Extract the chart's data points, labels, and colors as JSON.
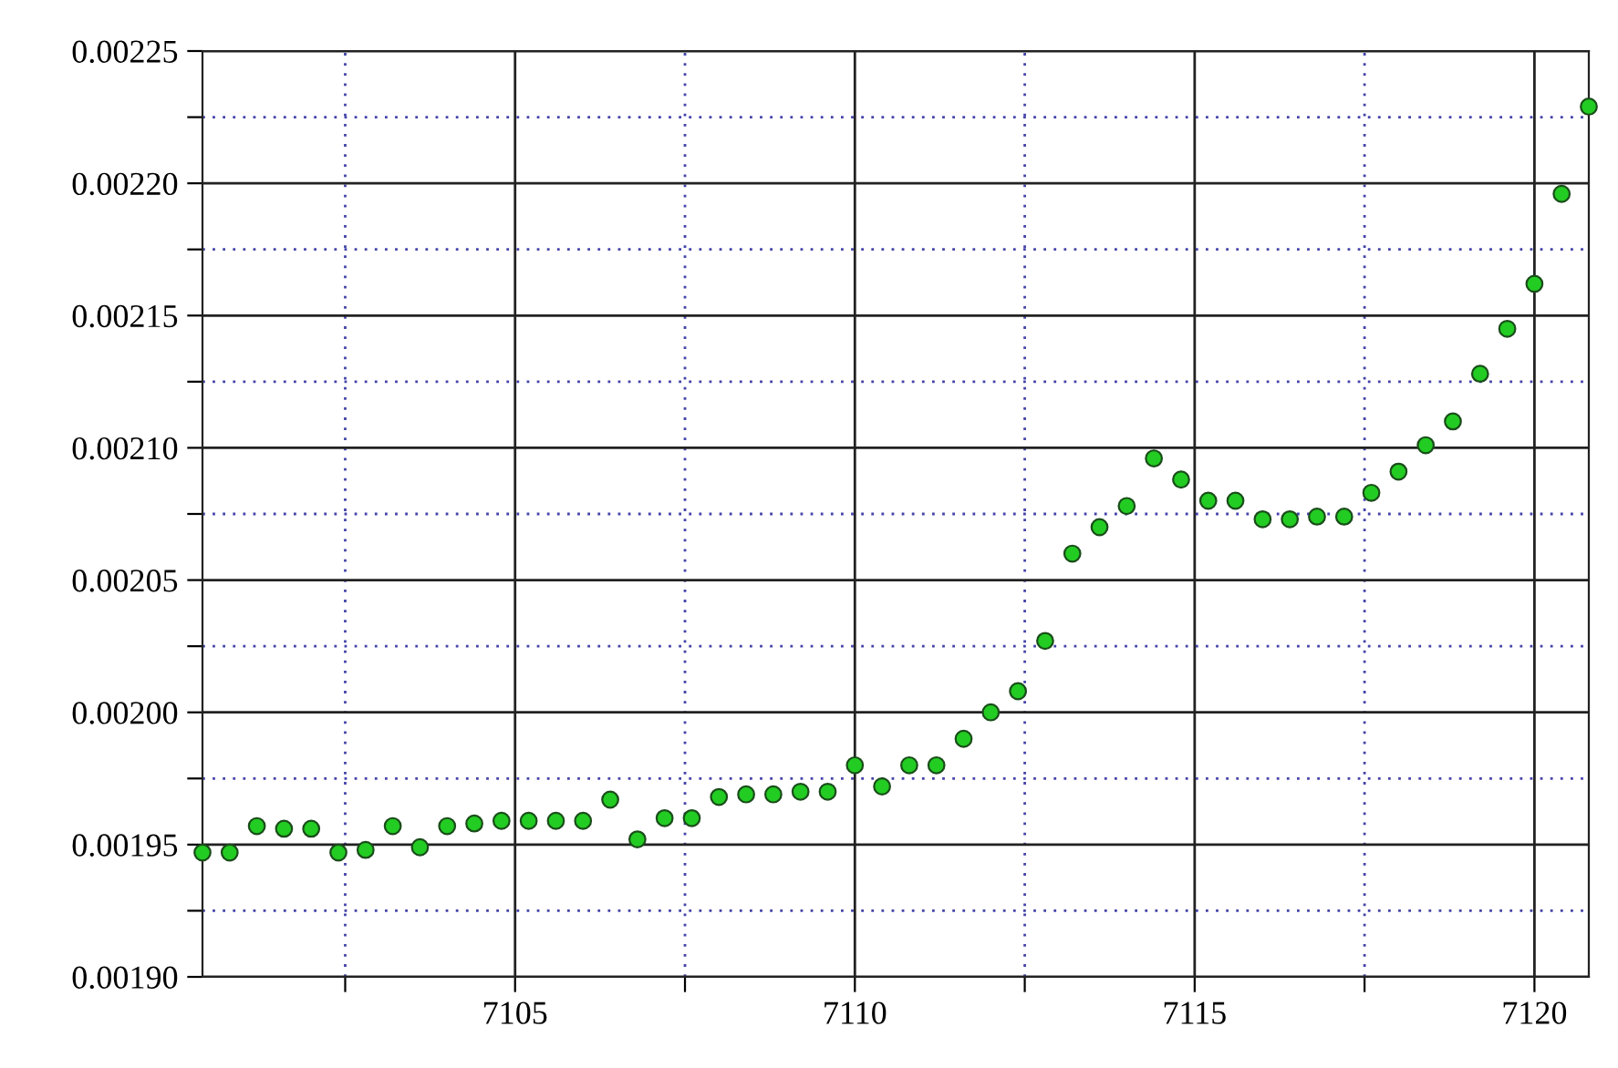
{
  "chart_data": {
    "type": "scatter",
    "marker": "circle",
    "grid": true,
    "x": [
      7100.4,
      7100.8,
      7101.2,
      7101.6,
      7102.0,
      7102.4,
      7102.8,
      7103.2,
      7103.6,
      7104.0,
      7104.4,
      7104.8,
      7105.2,
      7105.6,
      7106.0,
      7106.4,
      7106.8,
      7107.2,
      7107.6,
      7108.0,
      7108.4,
      7108.8,
      7109.2,
      7109.6,
      7110.0,
      7110.4,
      7110.8,
      7111.2,
      7111.6,
      7112.0,
      7112.4,
      7112.8,
      7113.2,
      7113.6,
      7114.0,
      7114.4,
      7114.8,
      7115.2,
      7115.6,
      7116.0,
      7116.4,
      7116.8,
      7117.2,
      7117.6,
      7118.0,
      7118.4,
      7118.8,
      7119.2,
      7119.6,
      7120.0,
      7120.4,
      7120.8
    ],
    "series": [
      {
        "color": "#22cc22",
        "values": [
          0.001947,
          0.001947,
          0.001957,
          0.001956,
          0.001956,
          0.001947,
          0.001948,
          0.001957,
          0.001949,
          0.001957,
          0.001958,
          0.001959,
          0.001959,
          0.001959,
          0.001959,
          0.001967,
          0.001952,
          0.00196,
          0.00196,
          0.001968,
          0.001969,
          0.001969,
          0.00197,
          0.00197,
          0.00198,
          0.001972,
          0.00198,
          0.00198,
          0.00199,
          0.002,
          0.002008,
          0.002027,
          0.00206,
          0.00207,
          0.002078,
          0.002096,
          0.002088,
          0.00208,
          0.00208,
          0.002073,
          0.002073,
          0.002074,
          0.002074,
          0.002083,
          0.002091,
          0.002101,
          0.00211,
          0.002128,
          0.002145,
          0.002162,
          0.002196,
          0.002229
        ]
      }
    ],
    "xlim": [
      7100.4,
      7120.8
    ],
    "xticks": [
      {
        "value": 7102.5,
        "label": null
      },
      7105,
      {
        "value": 7107.5,
        "label": null
      },
      7110,
      {
        "value": 7112.5,
        "label": null
      },
      7115,
      {
        "value": 7117.5,
        "label": null
      },
      7120
    ],
    "ylim": [
      0.0019,
      0.00225
    ],
    "yticks": [
      {
        "value": 0.0019,
        "label": "0.00190"
      },
      {
        "value": 0.001925,
        "label": null
      },
      {
        "value": 0.00195,
        "label": "0.00195"
      },
      {
        "value": 0.001975,
        "label": null
      },
      {
        "value": 0.002,
        "label": "0.00200"
      },
      {
        "value": 0.002025,
        "label": null
      },
      {
        "value": 0.00205,
        "label": "0.00205"
      },
      {
        "value": 0.002075,
        "label": null
      },
      {
        "value": 0.0021,
        "label": "0.00210"
      },
      {
        "value": 0.002125,
        "label": null
      },
      {
        "value": 0.00215,
        "label": "0.00215"
      },
      {
        "value": 0.002175,
        "label": null
      },
      {
        "value": 0.0022,
        "label": "0.00220"
      },
      {
        "value": 0.002225,
        "label": null
      },
      {
        "value": 0.00225,
        "label": "0.00225"
      }
    ]
  }
}
